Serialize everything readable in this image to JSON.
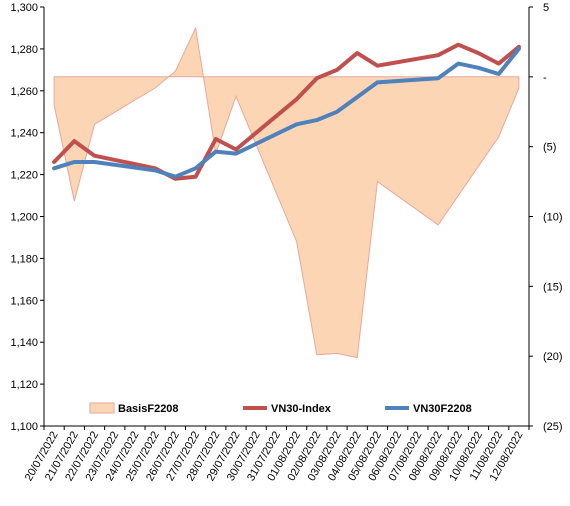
{
  "chart_data": {
    "type": "line",
    "title": "",
    "xlabel": "",
    "ylabel": "",
    "y_left_lim": [
      1100,
      1300
    ],
    "y_left_ticks": [
      "1,100",
      "1,120",
      "1,140",
      "1,160",
      "1,180",
      "1,200",
      "1,220",
      "1,240",
      "1,260",
      "1,280",
      "1,300"
    ],
    "y_right_lim": [
      -25,
      5
    ],
    "y_right_ticks": [
      "(25)",
      "(20)",
      "(15)",
      "(10)",
      "(5)",
      "-",
      "5"
    ],
    "categories": [
      "20/07/2022",
      "21/07/2022",
      "22/07/2022",
      "23/07/2022",
      "24/07/2022",
      "25/07/2022",
      "26/07/2022",
      "27/07/2022",
      "28/07/2022",
      "29/07/2022",
      "30/07/2022",
      "31/07/2022",
      "01/08/2022",
      "02/08/2022",
      "03/08/2022",
      "04/08/2022",
      "05/08/2022",
      "06/08/2022",
      "07/08/2022",
      "08/08/2022",
      "09/08/2022",
      "10/08/2022",
      "11/08/2022",
      "12/08/2022"
    ],
    "legend_position": "bottom",
    "grid": false,
    "series": [
      {
        "name": "BasisF2208",
        "kind": "area",
        "axis": "right",
        "color": "#fcd5b5",
        "edge_color": "#e7a89a",
        "points": [
          {
            "x": 0,
            "y": -2.0
          },
          {
            "x": 1,
            "y": -8.9
          },
          {
            "x": 2,
            "y": -3.4
          },
          {
            "x": 5,
            "y": -0.8
          },
          {
            "x": 6,
            "y": 0.4
          },
          {
            "x": 7,
            "y": 3.5
          },
          {
            "x": 8,
            "y": -5.5
          },
          {
            "x": 9,
            "y": -1.4
          },
          {
            "x": 12,
            "y": -11.8
          },
          {
            "x": 13,
            "y": -19.9
          },
          {
            "x": 14,
            "y": -19.8
          },
          {
            "x": 15,
            "y": -20.1
          },
          {
            "x": 16,
            "y": -7.5
          },
          {
            "x": 19,
            "y": -10.6
          },
          {
            "x": 22,
            "y": -4.3
          },
          {
            "x": 23,
            "y": -0.8
          }
        ]
      },
      {
        "name": "VN30-Index",
        "kind": "line",
        "axis": "left",
        "color": "#c0504d",
        "points": [
          {
            "x": 0,
            "y": 1226
          },
          {
            "x": 1,
            "y": 1236
          },
          {
            "x": 2,
            "y": 1229
          },
          {
            "x": 3,
            "y": 1227
          },
          {
            "x": 4,
            "y": 1225
          },
          {
            "x": 5,
            "y": 1223
          },
          {
            "x": 6,
            "y": 1218
          },
          {
            "x": 7,
            "y": 1219
          },
          {
            "x": 8,
            "y": 1237
          },
          {
            "x": 9,
            "y": 1232
          },
          {
            "x": 12,
            "y": 1256
          },
          {
            "x": 13,
            "y": 1266
          },
          {
            "x": 14,
            "y": 1270
          },
          {
            "x": 15,
            "y": 1278
          },
          {
            "x": 16,
            "y": 1272
          },
          {
            "x": 19,
            "y": 1277
          },
          {
            "x": 20,
            "y": 1282
          },
          {
            "x": 21,
            "y": 1278
          },
          {
            "x": 22,
            "y": 1273
          },
          {
            "x": 23,
            "y": 1281
          }
        ]
      },
      {
        "name": "VN30F2208",
        "kind": "line",
        "axis": "left",
        "color": "#4f81bd",
        "points": [
          {
            "x": 0,
            "y": 1223
          },
          {
            "x": 1,
            "y": 1226
          },
          {
            "x": 2,
            "y": 1226
          },
          {
            "x": 5,
            "y": 1222
          },
          {
            "x": 6,
            "y": 1219
          },
          {
            "x": 7,
            "y": 1223
          },
          {
            "x": 8,
            "y": 1231
          },
          {
            "x": 9,
            "y": 1230
          },
          {
            "x": 12,
            "y": 1244
          },
          {
            "x": 13,
            "y": 1246
          },
          {
            "x": 14,
            "y": 1250
          },
          {
            "x": 15,
            "y": 1257
          },
          {
            "x": 16,
            "y": 1264
          },
          {
            "x": 19,
            "y": 1266
          },
          {
            "x": 20,
            "y": 1273
          },
          {
            "x": 21,
            "y": 1271
          },
          {
            "x": 22,
            "y": 1268
          },
          {
            "x": 23,
            "y": 1280
          }
        ]
      }
    ]
  }
}
